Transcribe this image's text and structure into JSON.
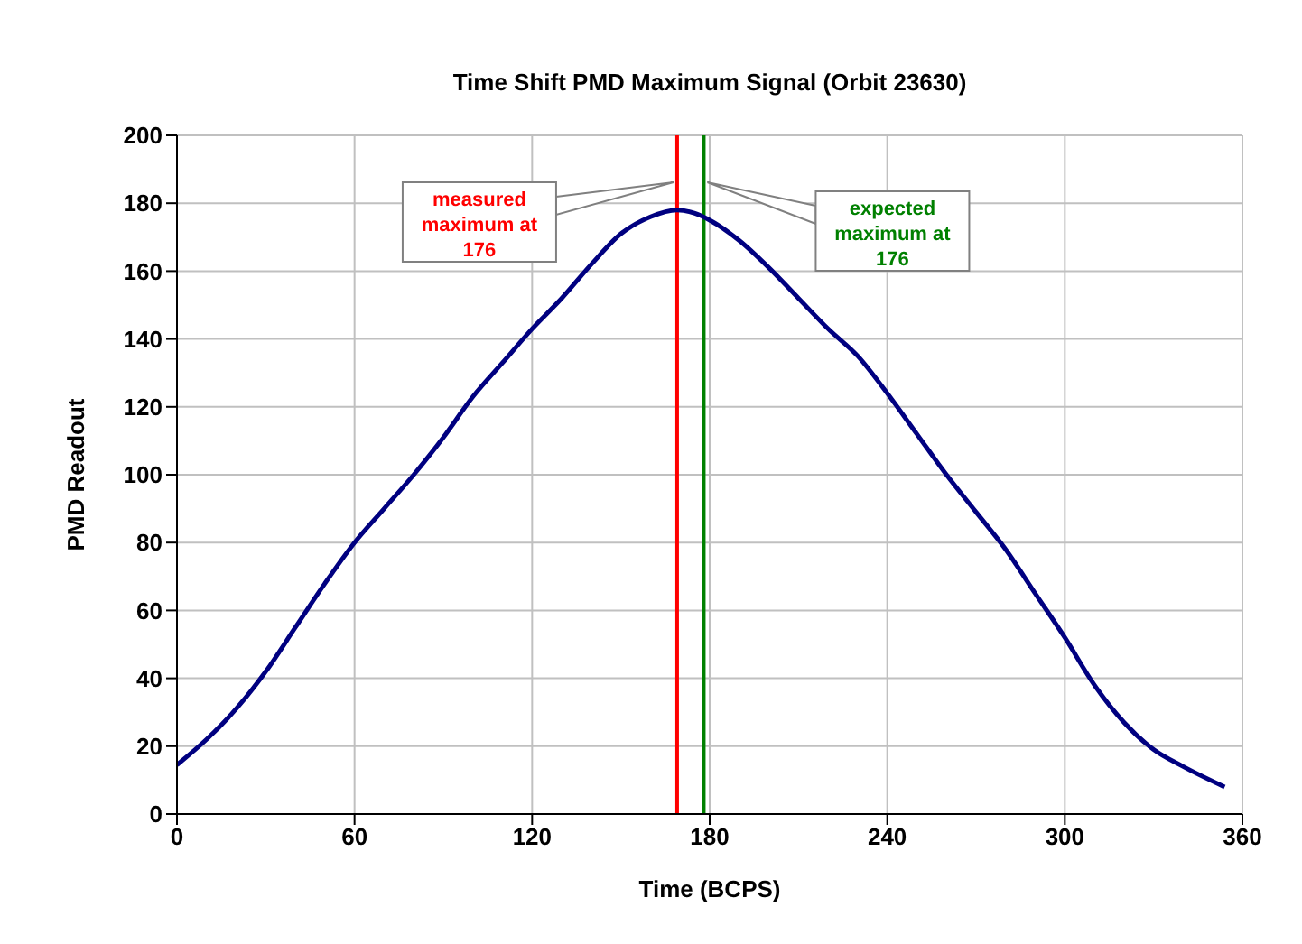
{
  "chart_data": {
    "type": "line",
    "title": "Time Shift PMD Maximum Signal (Orbit 23630)",
    "xlabel": "Time (BCPS)",
    "ylabel": "PMD Readout",
    "x": [
      0,
      10,
      20,
      30,
      40,
      50,
      60,
      70,
      80,
      90,
      100,
      110,
      120,
      130,
      140,
      150,
      160,
      169,
      175,
      180,
      190,
      200,
      210,
      220,
      230,
      240,
      250,
      260,
      270,
      280,
      290,
      300,
      310,
      320,
      330,
      340,
      354
    ],
    "series": [
      {
        "color": "#000080",
        "values": [
          14.5,
          22,
          31,
          42,
          55,
          68,
          80,
          90,
          100,
          111,
          123,
          133,
          143,
          152,
          162,
          171,
          176,
          178,
          177,
          175,
          169,
          161,
          152,
          143,
          135,
          124,
          112,
          100,
          89,
          78,
          65,
          52,
          38,
          27,
          19,
          14,
          8
        ]
      }
    ],
    "xlim": [
      0,
      360
    ],
    "xticks": [
      0,
      60,
      120,
      180,
      240,
      300,
      360
    ],
    "ylim": [
      0,
      200
    ],
    "yticks": [
      0,
      20,
      40,
      60,
      80,
      100,
      120,
      140,
      160,
      180,
      200
    ],
    "grid": true,
    "marker": "none",
    "line_style": "solid",
    "ref_lines": [
      {
        "axis": "x",
        "value": 169,
        "label": "measured maximum at 176",
        "color": "#ff0000",
        "line_style": "solid"
      },
      {
        "axis": "x",
        "value": 178,
        "label": "expected maximum at 176",
        "color": "#008000",
        "line_style": "solid"
      }
    ]
  }
}
